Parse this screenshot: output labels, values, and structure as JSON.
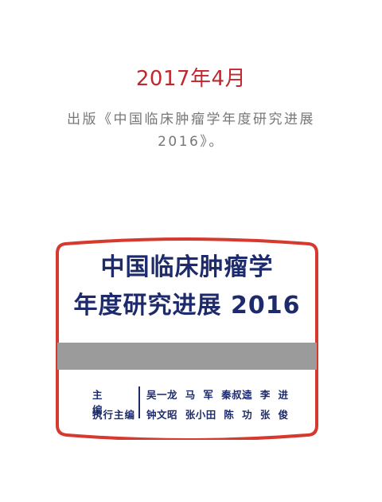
{
  "date": "2017年4月",
  "description": {
    "line1": "出版《中国临床肿瘤学年度研究进展",
    "line2": "2016》。"
  },
  "book_cover": {
    "title_line1": "中国临床肿瘤学",
    "title_line2": "年度研究进展 2016",
    "credits": [
      {
        "role": "主　编",
        "names": "吴一龙  马  军  秦叔逵  李  进"
      },
      {
        "role": "执行主编",
        "names": "钟文昭  张小田  陈  功  张  俊"
      }
    ],
    "colors": {
      "border": "#d63a2e",
      "title": "#1d2a6b",
      "band": "#9b9b9b"
    }
  },
  "colors": {
    "date": "#c1272d",
    "description": "#777777"
  }
}
